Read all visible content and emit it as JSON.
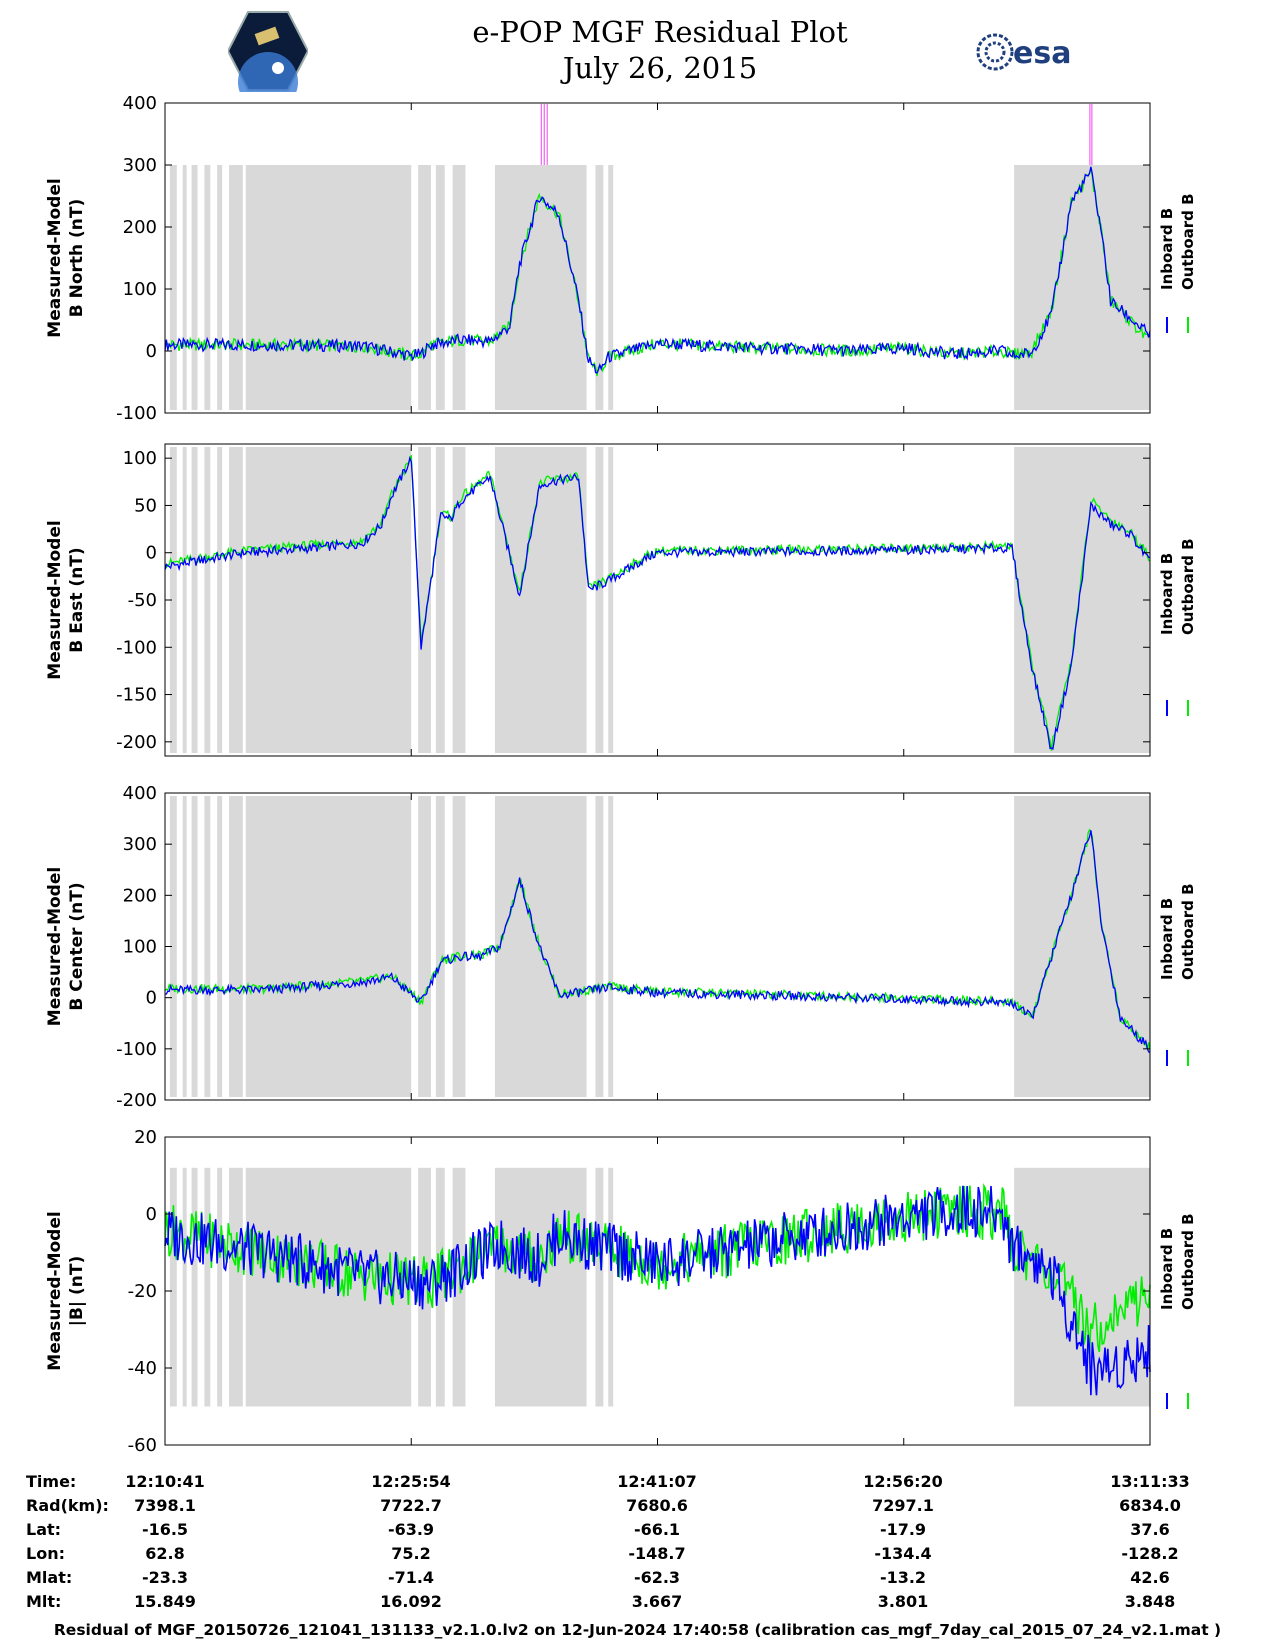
{
  "header": {
    "title": "e-POP MGF Residual Plot",
    "date": "July 26, 2015",
    "left_logo": "cassiope-mission-logo",
    "right_logo_text": "esa"
  },
  "legend": {
    "inboard": "Inboard B",
    "outboard": "Outboard B"
  },
  "colors": {
    "inboard": "#0000ff",
    "outboard": "#00ee00",
    "shade": "#d9d9d9",
    "spike": "#ee44ee"
  },
  "chart_data": [
    {
      "type": "line",
      "ylabel": [
        "Measured-Model",
        "B North (nT)"
      ],
      "ylim": [
        -100,
        400
      ],
      "yticks": [
        "400",
        "300",
        "200",
        "100",
        "0",
        "-100"
      ],
      "x": [
        0,
        0.1,
        0.2,
        0.25,
        0.26,
        0.27,
        0.3,
        0.33,
        0.35,
        0.36,
        0.38,
        0.4,
        0.42,
        0.43,
        0.44,
        0.45,
        0.5,
        0.6,
        0.7,
        0.75,
        0.8,
        0.85,
        0.86,
        0.88,
        0.9,
        0.92,
        0.94,
        0.95,
        0.96,
        1.0
      ],
      "series": [
        {
          "name": "Inboard B",
          "values": [
            10,
            10,
            8,
            -8,
            -5,
            10,
            18,
            15,
            40,
            140,
            250,
            220,
            80,
            -15,
            -35,
            -10,
            12,
            5,
            0,
            5,
            -5,
            0,
            -8,
            -3,
            60,
            240,
            290,
            200,
            80,
            25
          ]
        },
        {
          "name": "Outboard B",
          "values": [
            10,
            10,
            8,
            -8,
            -5,
            10,
            18,
            15,
            40,
            140,
            250,
            220,
            80,
            -15,
            -35,
            -10,
            12,
            5,
            0,
            5,
            -5,
            0,
            -6,
            0,
            65,
            240,
            290,
            200,
            82,
            15
          ]
        }
      ]
    },
    {
      "type": "line",
      "ylabel": [
        "Measured-Model",
        "B East (nT)"
      ],
      "ylim": [
        -215,
        115
      ],
      "yticks": [
        "100",
        "50",
        "0",
        "-50",
        "-100",
        "-150",
        "-200"
      ],
      "x": [
        0,
        0.08,
        0.15,
        0.2,
        0.22,
        0.23,
        0.25,
        0.26,
        0.28,
        0.29,
        0.3,
        0.33,
        0.36,
        0.38,
        0.39,
        0.42,
        0.43,
        0.45,
        0.49,
        0.5,
        0.7,
        0.86,
        0.87,
        0.88,
        0.9,
        0.92,
        0.94,
        0.96,
        0.98,
        1.0
      ],
      "series": [
        {
          "name": "Inboard B",
          "values": [
            -15,
            0,
            5,
            10,
            30,
            60,
            100,
            -100,
            40,
            35,
            55,
            80,
            -45,
            70,
            75,
            80,
            -40,
            -30,
            -5,
            0,
            2,
            5,
            -60,
            -120,
            -210,
            -120,
            50,
            30,
            20,
            -10
          ]
        },
        {
          "name": "Outboard B",
          "values": [
            -12,
            2,
            8,
            12,
            32,
            62,
            100,
            -98,
            42,
            38,
            58,
            83,
            -42,
            72,
            77,
            80,
            -38,
            -28,
            -3,
            2,
            4,
            7,
            -58,
            -118,
            -205,
            -115,
            55,
            35,
            22,
            -5
          ]
        }
      ]
    },
    {
      "type": "line",
      "ylabel": [
        "Measured-Model",
        "B Center (nT)"
      ],
      "ylim": [
        -200,
        400
      ],
      "yticks": [
        "400",
        "300",
        "200",
        "100",
        "0",
        "-100",
        "-200"
      ],
      "x": [
        0,
        0.1,
        0.2,
        0.23,
        0.26,
        0.28,
        0.3,
        0.32,
        0.34,
        0.36,
        0.38,
        0.4,
        0.42,
        0.45,
        0.5,
        0.7,
        0.86,
        0.88,
        0.92,
        0.94,
        0.95,
        0.97,
        1.0
      ],
      "series": [
        {
          "name": "Inboard B",
          "values": [
            15,
            15,
            30,
            40,
            -10,
            70,
            80,
            80,
            100,
            230,
            100,
            5,
            10,
            20,
            10,
            0,
            -10,
            -40,
            200,
            330,
            150,
            -40,
            -100
          ]
        },
        {
          "name": "Outboard B",
          "values": [
            18,
            17,
            32,
            42,
            -8,
            72,
            82,
            82,
            102,
            232,
            102,
            7,
            12,
            22,
            12,
            2,
            -8,
            -38,
            202,
            332,
            152,
            -38,
            -98
          ]
        }
      ]
    },
    {
      "type": "line",
      "ylabel": [
        "Measured-Model",
        "|B| (nT)"
      ],
      "ylim": [
        -60,
        20
      ],
      "yticks": [
        "20",
        "0",
        "-20",
        "-40",
        "-60"
      ],
      "x": [
        0,
        0.1,
        0.2,
        0.27,
        0.34,
        0.38,
        0.4,
        0.42,
        0.5,
        0.6,
        0.7,
        0.8,
        0.85,
        0.86,
        0.9,
        0.94,
        0.96,
        1.0
      ],
      "series": [
        {
          "name": "Inboard B",
          "values": [
            -5,
            -10,
            -16,
            -18,
            -8,
            -12,
            -5,
            -7,
            -13,
            -8,
            -3,
            1,
            0,
            -8,
            -15,
            -40,
            -40,
            -35
          ]
        },
        {
          "name": "Outboard B",
          "values": [
            -4,
            -10,
            -16,
            -18,
            -8,
            -12,
            -5,
            -7,
            -13,
            -8,
            -3,
            1,
            0,
            -8,
            -15,
            -30,
            -27,
            -20
          ]
        }
      ]
    }
  ],
  "orbit_table": {
    "row_labels": [
      "Time:",
      "Rad(km):",
      "Lat:",
      "Lon:",
      "Mlat:",
      "Mlt:"
    ],
    "columns": [
      [
        "12:10:41",
        "7398.1",
        "-16.5",
        "62.8",
        "-23.3",
        "15.849"
      ],
      [
        "12:25:54",
        "7722.7",
        "-63.9",
        "75.2",
        "-71.4",
        "16.092"
      ],
      [
        "12:41:07",
        "7680.6",
        "-66.1",
        "-148.7",
        "-62.3",
        "3.667"
      ],
      [
        "12:56:20",
        "7297.1",
        "-17.9",
        "-134.4",
        "-13.2",
        "3.801"
      ],
      [
        "13:11:33",
        "6834.0",
        "37.6",
        "-128.2",
        "42.6",
        "3.848"
      ]
    ]
  },
  "footer": "Residual of MGF_20150726_121041_131133_v2.1.0.lv2 on 12-Jun-2024 17:40:58 (calibration cas_mgf_7day_cal_2015_07_24_v2.1.mat )"
}
